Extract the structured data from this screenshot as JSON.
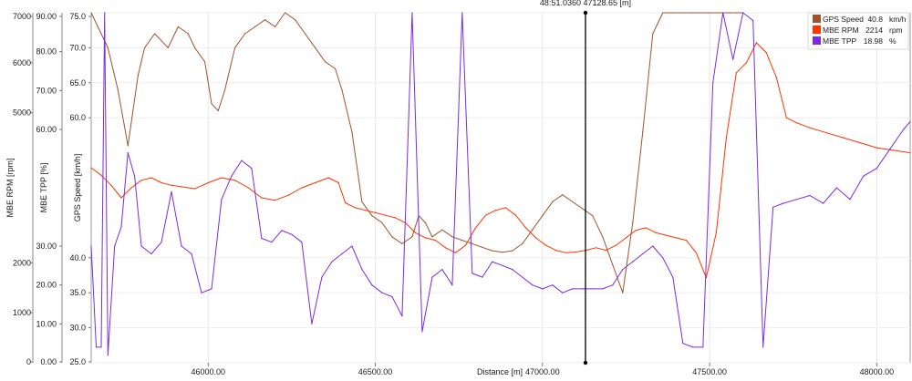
{
  "cursor_readout": "48:51.0360   47128.65 [m]",
  "legend": [
    {
      "name": "GPS Speed",
      "value": "40.8",
      "unit": "km/h",
      "color": "#a0522d"
    },
    {
      "name": "MBE RPM",
      "value": "2214",
      "unit": "rpm",
      "color": "#ff3300"
    },
    {
      "name": "MBE TPP",
      "value": "18.98",
      "unit": "%",
      "color": "#7b2be2"
    }
  ],
  "chart_data": {
    "type": "line",
    "xlabel": "Distance [m]",
    "x_ticks": [
      "46000.00",
      "46500.00",
      "47000.00",
      "47500.00",
      "48000.00"
    ],
    "xlim": [
      45650,
      48100
    ],
    "cursor_x": 47128.65,
    "grid": true,
    "legend_position": "top-right",
    "axes": [
      {
        "label": "MBE RPM [rpm]",
        "ticks": [
          "7000",
          "6000",
          "5000",
          "2000",
          "1000",
          "0"
        ],
        "ylim": [
          0,
          7000
        ],
        "color": "#1a1a1a"
      },
      {
        "label": "MBE TPP [%]",
        "ticks": [
          "90.00",
          "80.00",
          "70.00",
          "60.00",
          "30.00",
          "20.00",
          "10.00",
          "0.00"
        ],
        "ylim": [
          0,
          90
        ],
        "color": "#1a1a1a"
      },
      {
        "label": "GPS Speed [km/h]",
        "ticks": [
          "75.0",
          "70.0",
          "65.0",
          "60.0",
          "40.0",
          "35.0",
          "30.0",
          "25.0"
        ],
        "ylim": [
          25,
          75
        ],
        "color": "#1a1a1a"
      }
    ],
    "series": [
      {
        "name": "GPS Speed",
        "unit": "km/h",
        "color": "#a0522d",
        "x": [
          45650,
          45670,
          45700,
          45730,
          45760,
          45790,
          45810,
          45840,
          45860,
          45880,
          45910,
          45940,
          45960,
          45990,
          46010,
          46030,
          46050,
          46080,
          46110,
          46140,
          46170,
          46200,
          46230,
          46260,
          46290,
          46320,
          46350,
          46380,
          46400,
          46430,
          46460,
          46490,
          46520,
          46550,
          46580,
          46610,
          46630,
          46650,
          46670,
          46700,
          46730,
          46760,
          46790,
          46820,
          46850,
          46880,
          46910,
          46940,
          46970,
          47000,
          47030,
          47060,
          47090,
          47120,
          47150,
          47180,
          47210,
          47240,
          47270,
          47300,
          47330,
          47360,
          47390,
          47420,
          47450,
          47480,
          47500,
          47520,
          47540,
          47560,
          47580,
          47600
        ],
        "y": [
          75.0,
          73.0,
          70.0,
          64.0,
          56.0,
          66.0,
          70.0,
          72.0,
          71.0,
          70.0,
          73.0,
          72.0,
          70.0,
          68.0,
          62.0,
          61.0,
          64.0,
          70.0,
          72.0,
          73.0,
          74.0,
          73.0,
          75.0,
          74.0,
          72.0,
          70.0,
          68.0,
          67.0,
          64.0,
          58.0,
          48.0,
          46.0,
          45.0,
          43.0,
          42.0,
          43.0,
          46.0,
          45.0,
          43.0,
          44.0,
          43.0,
          42.5,
          42.0,
          41.5,
          41.0,
          40.8,
          41.0,
          42.0,
          44.0,
          46.0,
          48.0,
          49.0,
          48.0,
          47.0,
          46.0,
          43.0,
          39.0,
          35.0,
          45.0,
          58.0,
          72.0,
          75.0,
          75.0,
          75.0,
          75.0,
          75.0,
          75.0,
          75.0,
          75.0,
          75.0,
          75.0,
          75.0
        ]
      },
      {
        "name": "MBE RPM",
        "unit": "rpm",
        "color": "#ff3300",
        "x": [
          45650,
          45680,
          45710,
          45740,
          45770,
          45800,
          45830,
          45860,
          45890,
          45920,
          45960,
          46000,
          46040,
          46080,
          46120,
          46160,
          46200,
          46240,
          46280,
          46320,
          46360,
          46390,
          46410,
          46440,
          46470,
          46500,
          46530,
          46560,
          46590,
          46620,
          46650,
          46680,
          46710,
          46740,
          46770,
          46800,
          46830,
          46860,
          46890,
          46920,
          46950,
          46980,
          47010,
          47040,
          47070,
          47100,
          47130,
          47160,
          47190,
          47220,
          47250,
          47280,
          47310,
          47340,
          47370,
          47400,
          47430,
          47460,
          47490,
          47520,
          47550,
          47580,
          47610,
          47640,
          47670,
          47700,
          47730,
          47760,
          47800,
          47850,
          47900,
          47950,
          48000,
          48050,
          48100
        ],
        "y": [
          3900,
          3750,
          3550,
          3300,
          3500,
          3650,
          3700,
          3600,
          3550,
          3520,
          3480,
          3600,
          3700,
          3650,
          3500,
          3300,
          3250,
          3350,
          3500,
          3600,
          3700,
          3600,
          3200,
          3100,
          3050,
          3000,
          2950,
          2900,
          2800,
          2600,
          2500,
          2450,
          2300,
          2200,
          2350,
          2700,
          2950,
          3050,
          3100,
          2950,
          2700,
          2500,
          2350,
          2250,
          2200,
          2214,
          2250,
          2300,
          2250,
          2350,
          2500,
          2650,
          2700,
          2600,
          2550,
          2500,
          2450,
          2200,
          1700,
          2600,
          4500,
          5800,
          6000,
          6400,
          6200,
          5700,
          4900,
          4800,
          4700,
          4600,
          4500,
          4400,
          4300,
          4250,
          4200
        ]
      },
      {
        "name": "MBE TPP",
        "unit": "%",
        "color": "#7b2be2",
        "x": [
          45650,
          45665,
          45680,
          45690,
          45700,
          45720,
          45740,
          45760,
          45780,
          45800,
          45830,
          45860,
          45890,
          45920,
          45950,
          45980,
          46010,
          46040,
          46070,
          46100,
          46130,
          46160,
          46190,
          46220,
          46250,
          46280,
          46310,
          46340,
          46370,
          46400,
          46430,
          46460,
          46490,
          46520,
          46550,
          46580,
          46610,
          46640,
          46670,
          46700,
          46730,
          46760,
          46790,
          46820,
          46850,
          46880,
          46910,
          46940,
          46970,
          47000,
          47030,
          47060,
          47090,
          47120,
          47150,
          47180,
          47210,
          47240,
          47270,
          47300,
          47330,
          47360,
          47390,
          47420,
          47450,
          47480,
          47510,
          47540,
          47570,
          47600,
          47630,
          47660,
          47690,
          47720,
          47760,
          47800,
          47840,
          47880,
          47920,
          47960,
          48000,
          48040,
          48080,
          48100
        ],
        "y": [
          30,
          4,
          4,
          90,
          2,
          30,
          35,
          54,
          48,
          30,
          28,
          31,
          44,
          30,
          28,
          18,
          19,
          42,
          48,
          52,
          50,
          32,
          31,
          34,
          33,
          31,
          10,
          22,
          26,
          28,
          30,
          24,
          20,
          18,
          17,
          12,
          90,
          8,
          22,
          24,
          20,
          90,
          23,
          22,
          26,
          25,
          24,
          22,
          20,
          19,
          20,
          18,
          19,
          19,
          19,
          19,
          20,
          24,
          26,
          28,
          30,
          27,
          22,
          5,
          4,
          4,
          72,
          90,
          78,
          90,
          88,
          4,
          40,
          41,
          42,
          43,
          41,
          45,
          42,
          48,
          50,
          55,
          60,
          62
        ]
      }
    ]
  }
}
